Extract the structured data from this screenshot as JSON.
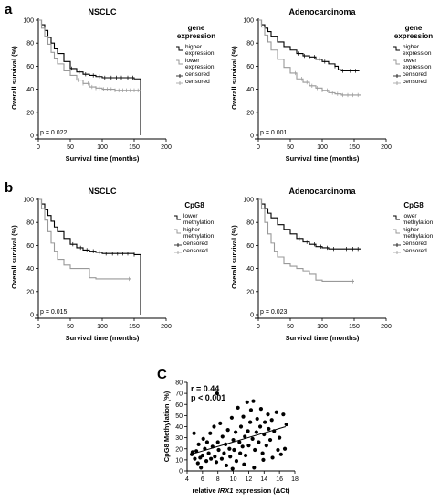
{
  "figure": {
    "label_a": "a",
    "label_b": "b",
    "label_c": "C"
  },
  "chart_data": [
    {
      "id": "a-left",
      "type": "line",
      "title": "NSCLC",
      "xlabel": "Survival time (months)",
      "ylabel": "Overall survival (%)",
      "xlim": [
        0,
        200
      ],
      "ylim": [
        0,
        100
      ],
      "xticks": [
        0,
        50,
        100,
        150,
        200
      ],
      "yticks": [
        0,
        20,
        40,
        60,
        80,
        100
      ],
      "annotation": "p = 0.022",
      "legend": {
        "title": [
          "gene",
          "expression"
        ],
        "entries": [
          {
            "label": [
              "higher",
              "expression"
            ],
            "color": "#000000",
            "style": "line"
          },
          {
            "label": [
              "lower",
              "expression"
            ],
            "color": "#999999",
            "style": "line"
          },
          {
            "label": [
              "censored"
            ],
            "color": "#000000",
            "style": "plus"
          },
          {
            "label": [
              "censored"
            ],
            "color": "#999999",
            "style": "plus"
          }
        ]
      },
      "series": [
        {
          "color": "#000000",
          "x": [
            0,
            5,
            10,
            15,
            20,
            25,
            30,
            40,
            50,
            60,
            70,
            80,
            90,
            100,
            110,
            120,
            130,
            140,
            150,
            158,
            160,
            160
          ],
          "y": [
            100,
            96,
            91,
            85,
            80,
            75,
            71,
            64,
            58,
            55,
            53,
            52,
            51,
            50,
            50,
            50,
            50,
            50,
            49,
            49,
            49,
            0
          ],
          "censored_x": [
            52,
            64,
            74,
            86,
            96,
            104,
            114,
            122,
            130,
            140,
            148
          ]
        },
        {
          "color": "#999999",
          "x": [
            0,
            5,
            10,
            15,
            20,
            25,
            30,
            40,
            50,
            60,
            70,
            80,
            90,
            100,
            110,
            120,
            130,
            140,
            150,
            160
          ],
          "y": [
            100,
            93,
            86,
            79,
            72,
            67,
            62,
            56,
            52,
            48,
            45,
            42,
            41,
            40,
            40,
            39,
            39,
            39,
            39,
            39
          ],
          "censored_x": [
            62,
            70,
            78,
            84,
            90,
            96,
            102,
            108,
            114,
            120,
            126,
            132,
            138,
            144,
            150,
            156
          ]
        }
      ]
    },
    {
      "id": "a-right",
      "type": "line",
      "title": "Adenocarcinoma",
      "xlabel": "Survival time (months)",
      "ylabel": "Overall survival (%)",
      "xlim": [
        0,
        200
      ],
      "ylim": [
        0,
        100
      ],
      "xticks": [
        0,
        50,
        100,
        150,
        200
      ],
      "yticks": [
        0,
        20,
        40,
        60,
        80,
        100
      ],
      "annotation": "p = 0.001",
      "legend": {
        "title": [
          "gene",
          "expression"
        ],
        "entries": [
          {
            "label": [
              "higher",
              "expression"
            ],
            "color": "#000000",
            "style": "line"
          },
          {
            "label": [
              "lower",
              "expression"
            ],
            "color": "#999999",
            "style": "line"
          },
          {
            "label": [
              "censored"
            ],
            "color": "#000000",
            "style": "plus"
          },
          {
            "label": [
              "censored"
            ],
            "color": "#999999",
            "style": "plus"
          }
        ]
      },
      "series": [
        {
          "color": "#000000",
          "x": [
            0,
            5,
            10,
            15,
            20,
            30,
            40,
            50,
            60,
            70,
            80,
            90,
            100,
            110,
            120,
            125,
            130,
            140,
            150,
            158
          ],
          "y": [
            100,
            96,
            93,
            90,
            86,
            81,
            77,
            74,
            71,
            69,
            68,
            66,
            64,
            62,
            60,
            57,
            56,
            56,
            56,
            56
          ],
          "censored_x": [
            62,
            72,
            80,
            88,
            96,
            104,
            112,
            120,
            132,
            144,
            152
          ]
        },
        {
          "color": "#999999",
          "x": [
            0,
            5,
            10,
            15,
            20,
            30,
            40,
            50,
            60,
            70,
            80,
            90,
            100,
            110,
            120,
            130,
            140,
            150,
            160
          ],
          "y": [
            100,
            94,
            87,
            81,
            74,
            66,
            59,
            54,
            49,
            46,
            43,
            41,
            39,
            37,
            36,
            35,
            35,
            35,
            35
          ],
          "censored_x": [
            58,
            68,
            76,
            84,
            92,
            100,
            108,
            116,
            124,
            132,
            140,
            148,
            156
          ]
        }
      ]
    },
    {
      "id": "b-left",
      "type": "line",
      "title": "NSCLC",
      "xlabel": "Survival time (months)",
      "ylabel": "Overall survival (%)",
      "xlim": [
        0,
        200
      ],
      "ylim": [
        0,
        100
      ],
      "xticks": [
        0,
        50,
        100,
        150,
        200
      ],
      "yticks": [
        0,
        20,
        40,
        60,
        80,
        100
      ],
      "annotation": "p = 0.015",
      "legend": {
        "title": [
          "CpG8"
        ],
        "entries": [
          {
            "label": [
              "lower",
              "methylation"
            ],
            "color": "#000000",
            "style": "line"
          },
          {
            "label": [
              "higher",
              "methylation"
            ],
            "color": "#999999",
            "style": "line"
          },
          {
            "label": [
              "censored"
            ],
            "color": "#000000",
            "style": "plus"
          },
          {
            "label": [
              "censored"
            ],
            "color": "#999999",
            "style": "plus"
          }
        ]
      },
      "series": [
        {
          "color": "#000000",
          "x": [
            0,
            5,
            10,
            15,
            20,
            25,
            30,
            40,
            50,
            60,
            70,
            80,
            90,
            100,
            110,
            120,
            130,
            140,
            150,
            158,
            160,
            160
          ],
          "y": [
            100,
            96,
            91,
            86,
            81,
            76,
            72,
            66,
            61,
            58,
            56,
            55,
            54,
            53,
            53,
            53,
            53,
            53,
            52,
            52,
            52,
            0
          ],
          "censored_x": [
            54,
            66,
            76,
            86,
            96,
            106,
            116,
            124,
            132,
            140,
            150
          ]
        },
        {
          "color": "#999999",
          "x": [
            0,
            5,
            10,
            15,
            20,
            25,
            30,
            40,
            50,
            60,
            70,
            80,
            90,
            110,
            130,
            145
          ],
          "y": [
            100,
            92,
            82,
            72,
            62,
            55,
            48,
            43,
            40,
            40,
            40,
            32,
            31,
            31,
            31,
            31
          ],
          "censored_x": [
            142
          ]
        }
      ]
    },
    {
      "id": "b-right",
      "type": "line",
      "title": "Adenocarcinoma",
      "xlabel": "Survival time (months)",
      "ylabel": "Overall survival (%)",
      "xlim": [
        0,
        200
      ],
      "ylim": [
        0,
        100
      ],
      "xticks": [
        0,
        50,
        100,
        150,
        200
      ],
      "yticks": [
        0,
        20,
        40,
        60,
        80,
        100
      ],
      "annotation": "p = 0.023",
      "legend": {
        "title": [
          "CpG8"
        ],
        "entries": [
          {
            "label": [
              "lower",
              "methylation"
            ],
            "color": "#000000",
            "style": "line"
          },
          {
            "label": [
              "higher",
              "methylation"
            ],
            "color": "#999999",
            "style": "line"
          },
          {
            "label": [
              "censored"
            ],
            "color": "#000000",
            "style": "plus"
          },
          {
            "label": [
              "censored"
            ],
            "color": "#999999",
            "style": "plus"
          }
        ]
      },
      "series": [
        {
          "color": "#000000",
          "x": [
            0,
            5,
            10,
            15,
            20,
            30,
            40,
            50,
            60,
            70,
            80,
            90,
            100,
            110,
            120,
            130,
            140,
            150,
            160
          ],
          "y": [
            100,
            96,
            92,
            88,
            84,
            78,
            74,
            70,
            66,
            63,
            61,
            59,
            58,
            57,
            57,
            57,
            57,
            57,
            57
          ],
          "censored_x": [
            64,
            76,
            88,
            98,
            108,
            118,
            128,
            138,
            148,
            156
          ]
        },
        {
          "color": "#999999",
          "x": [
            0,
            5,
            10,
            15,
            20,
            25,
            30,
            40,
            50,
            60,
            70,
            80,
            90,
            100,
            150
          ],
          "y": [
            100,
            92,
            80,
            70,
            62,
            55,
            50,
            44,
            42,
            40,
            38,
            35,
            30,
            29,
            29
          ],
          "censored_x": [
            148
          ]
        }
      ]
    },
    {
      "id": "c",
      "type": "scatter",
      "xlabel_pre": "relative ",
      "xlabel_italic": "IRX1",
      "xlabel_post": " expression (ΔCt)",
      "ylabel": "CpG8 Methylation (%)",
      "xlim": [
        4,
        18
      ],
      "ylim": [
        0,
        80
      ],
      "xticks": [
        4,
        6,
        8,
        10,
        12,
        14,
        16,
        18
      ],
      "yticks": [
        0,
        10,
        20,
        30,
        40,
        50,
        60,
        70,
        80
      ],
      "stats": [
        "r = 0.44",
        "p < 0.001"
      ],
      "trendline": {
        "x": [
          4.5,
          16.8
        ],
        "y": [
          15,
          40
        ]
      },
      "points": [
        [
          4.6,
          15
        ],
        [
          4.7,
          17
        ],
        [
          4.9,
          34
        ],
        [
          5.0,
          11
        ],
        [
          5.2,
          18
        ],
        [
          5.4,
          7
        ],
        [
          5.5,
          24
        ],
        [
          5.7,
          12
        ],
        [
          5.8,
          3
        ],
        [
          6.0,
          14
        ],
        [
          6.1,
          29
        ],
        [
          6.3,
          20
        ],
        [
          6.5,
          9
        ],
        [
          6.6,
          26
        ],
        [
          6.8,
          16
        ],
        [
          7.0,
          34
        ],
        [
          7.1,
          11
        ],
        [
          7.3,
          22
        ],
        [
          7.5,
          40
        ],
        [
          7.6,
          13
        ],
        [
          7.8,
          8
        ],
        [
          8.0,
          26
        ],
        [
          8.1,
          19
        ],
        [
          8.3,
          43
        ],
        [
          8.5,
          11
        ],
        [
          8.6,
          31
        ],
        [
          8.8,
          16
        ],
        [
          9.0,
          24
        ],
        [
          9.1,
          5
        ],
        [
          9.3,
          37
        ],
        [
          9.5,
          20
        ],
        [
          9.6,
          13
        ],
        [
          9.8,
          48
        ],
        [
          10.0,
          28
        ],
        [
          10.1,
          19
        ],
        [
          10.3,
          35
        ],
        [
          10.4,
          9
        ],
        [
          10.6,
          57
        ],
        [
          10.8,
          26
        ],
        [
          10.9,
          16
        ],
        [
          11.0,
          40
        ],
        [
          11.2,
          22
        ],
        [
          11.3,
          49
        ],
        [
          11.5,
          31
        ],
        [
          11.6,
          14
        ],
        [
          11.8,
          62
        ],
        [
          11.9,
          36
        ],
        [
          12.0,
          23
        ],
        [
          12.2,
          44
        ],
        [
          12.3,
          55
        ],
        [
          12.5,
          29
        ],
        [
          12.6,
          63
        ],
        [
          12.8,
          19
        ],
        [
          13.0,
          35
        ],
        [
          13.1,
          47
        ],
        [
          13.3,
          26
        ],
        [
          13.5,
          40
        ],
        [
          13.6,
          56
        ],
        [
          13.8,
          16
        ],
        [
          14.0,
          33
        ],
        [
          14.1,
          44
        ],
        [
          14.3,
          23
        ],
        [
          14.5,
          51
        ],
        [
          14.6,
          38
        ],
        [
          14.8,
          28
        ],
        [
          15.0,
          46
        ],
        [
          15.1,
          12
        ],
        [
          15.3,
          36
        ],
        [
          15.6,
          53
        ],
        [
          15.8,
          19
        ],
        [
          16.0,
          30
        ],
        [
          16.2,
          15
        ],
        [
          16.5,
          51
        ],
        [
          16.7,
          20
        ],
        [
          16.9,
          42
        ],
        [
          7.9,
          70
        ],
        [
          11.4,
          6
        ],
        [
          9.9,
          2
        ],
        [
          12.7,
          3
        ],
        [
          13.9,
          10
        ]
      ]
    }
  ]
}
